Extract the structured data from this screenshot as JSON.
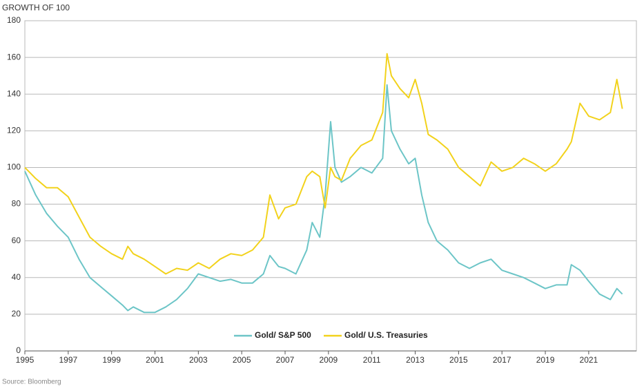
{
  "chart_data": {
    "type": "line",
    "title": "GROWTH OF 100",
    "source": "Source: Bloomberg",
    "x": [
      1995,
      1995.5,
      1996,
      1996.5,
      1997,
      1997.5,
      1998,
      1998.5,
      1999,
      1999.5,
      1999.75,
      2000,
      2000.5,
      2001,
      2001.5,
      2002,
      2002.5,
      2003,
      2003.5,
      2004,
      2004.5,
      2005,
      2005.5,
      2006,
      2006.3,
      2006.7,
      2007,
      2007.5,
      2008,
      2008.25,
      2008.6,
      2008.85,
      2009.1,
      2009.3,
      2009.6,
      2010,
      2010.5,
      2011,
      2011.5,
      2011.7,
      2011.9,
      2012.3,
      2012.7,
      2013,
      2013.3,
      2013.6,
      2014,
      2014.5,
      2015,
      2015.5,
      2016,
      2016.5,
      2017,
      2017.5,
      2018,
      2018.5,
      2019,
      2019.5,
      2020,
      2020.2,
      2020.6,
      2021,
      2021.5,
      2022,
      2022.3,
      2022.55
    ],
    "series": [
      {
        "name": "Gold/ S&P 500",
        "color": "#6cc5c7",
        "values": [
          98,
          85,
          75,
          68,
          62,
          50,
          40,
          35,
          30,
          25,
          22,
          24,
          21,
          21,
          24,
          28,
          34,
          42,
          40,
          38,
          39,
          37,
          37,
          42,
          52,
          46,
          45,
          42,
          55,
          70,
          62,
          85,
          125,
          100,
          92,
          95,
          100,
          97,
          105,
          145,
          120,
          110,
          102,
          105,
          85,
          70,
          60,
          55,
          48,
          45,
          48,
          50,
          44,
          42,
          40,
          37,
          34,
          36,
          36,
          47,
          44,
          38,
          31,
          28,
          34,
          31
        ]
      },
      {
        "name": "Gold/ U.S. Treasuries",
        "color": "#f2d21b",
        "values": [
          100,
          94,
          89,
          89,
          84,
          73,
          62,
          57,
          53,
          50,
          57,
          53,
          50,
          46,
          42,
          45,
          44,
          48,
          45,
          50,
          53,
          52,
          55,
          62,
          85,
          72,
          78,
          80,
          95,
          98,
          95,
          78,
          100,
          95,
          93,
          105,
          112,
          115,
          130,
          162,
          150,
          143,
          138,
          148,
          135,
          118,
          115,
          110,
          100,
          95,
          90,
          103,
          98,
          100,
          105,
          102,
          98,
          102,
          110,
          114,
          135,
          128,
          126,
          130,
          148,
          132
        ]
      }
    ],
    "xlim": [
      1995,
      2023.2
    ],
    "xticks": [
      1995,
      1997,
      1999,
      2001,
      2003,
      2005,
      2007,
      2009,
      2011,
      2013,
      2015,
      2017,
      2019,
      2021
    ],
    "ylim": [
      0,
      180
    ],
    "yticks": [
      0,
      20,
      40,
      60,
      80,
      100,
      120,
      140,
      160,
      180
    ],
    "grid": true,
    "legend": "lower center"
  }
}
